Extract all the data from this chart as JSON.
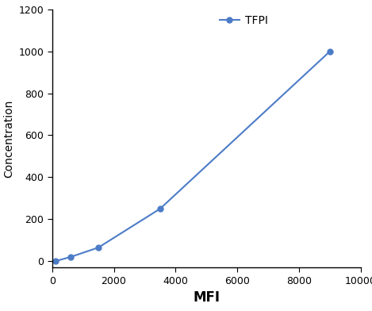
{
  "x": [
    100,
    600,
    1500,
    3500,
    9000
  ],
  "y": [
    0,
    20,
    65,
    250,
    1000
  ],
  "line_color": "#4d7cc7",
  "marker": "o",
  "marker_size": 5,
  "marker_facecolor": "#4d7cc7",
  "legend_label": "TFPI",
  "xlabel": "MFI",
  "ylabel": "Concentration",
  "xlabel_fontsize": 12,
  "ylabel_fontsize": 10,
  "xlabel_fontweight": "bold",
  "ylabel_fontweight": "normal",
  "xlim": [
    0,
    10000
  ],
  "ylim": [
    -30,
    1200
  ],
  "xticks": [
    0,
    2000,
    4000,
    6000,
    8000,
    10000
  ],
  "yticks": [
    0,
    200,
    400,
    600,
    800,
    1000,
    1200
  ],
  "tick_fontsize": 9,
  "legend_fontsize": 10,
  "background_color": "#ffffff",
  "spines_top": false,
  "spines_right": false,
  "figsize": [
    4.69,
    3.92
  ],
  "dpi": 100
}
